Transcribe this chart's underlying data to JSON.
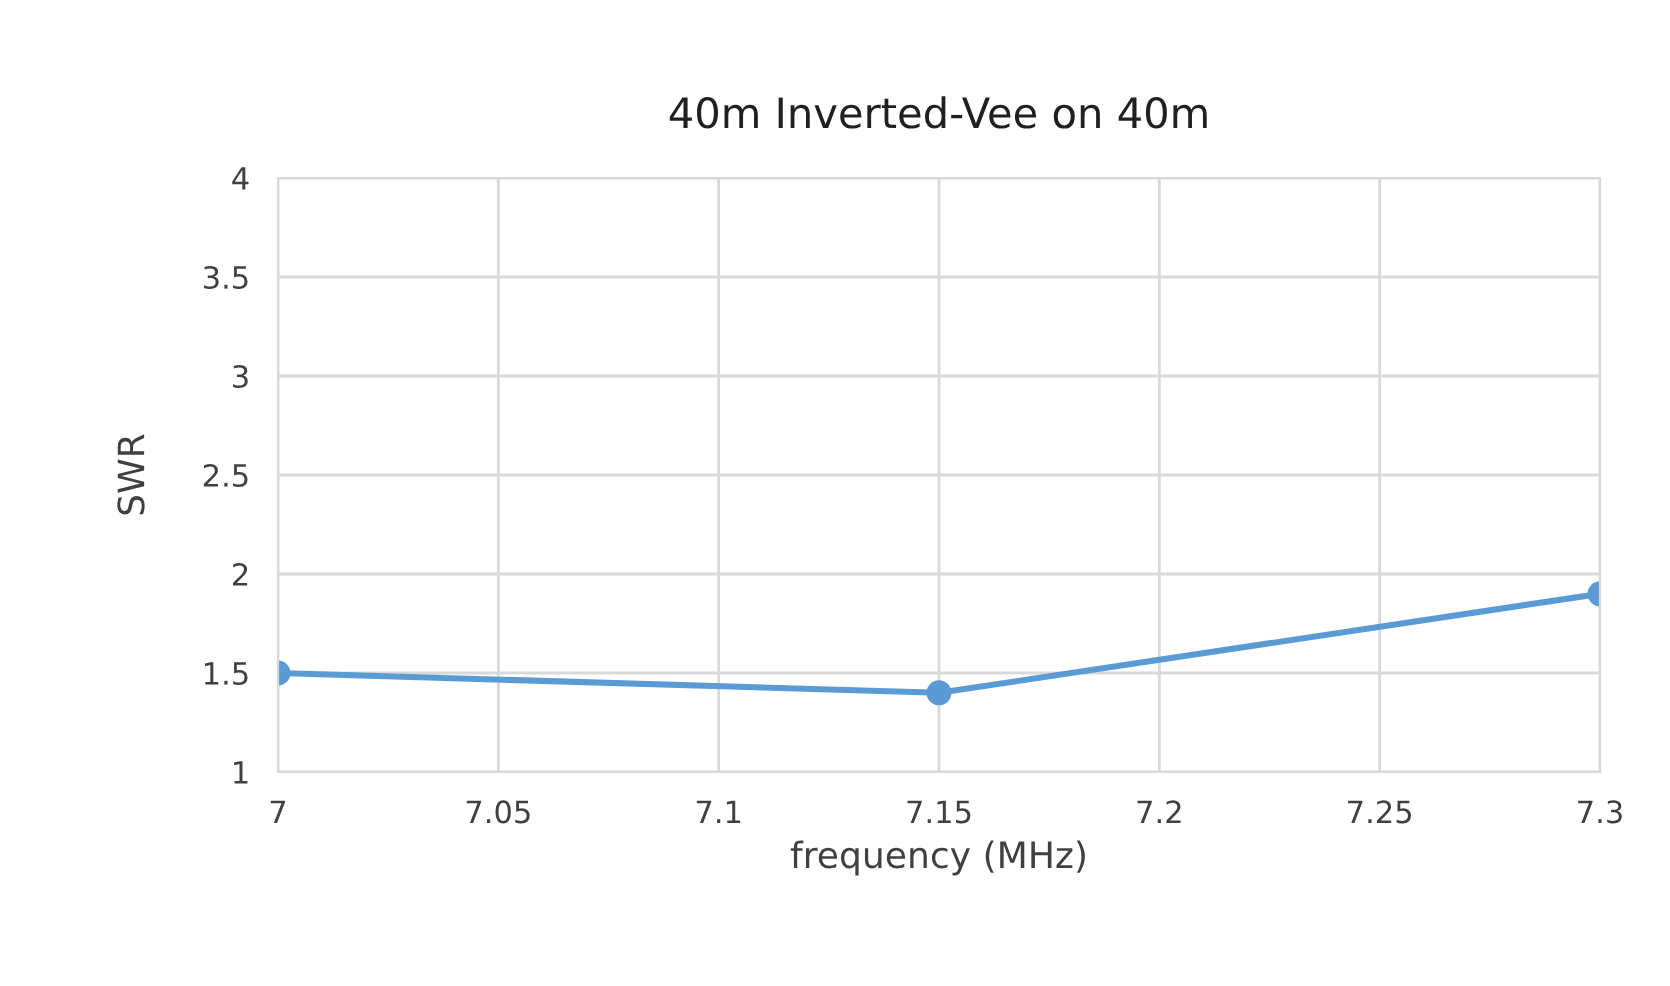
{
  "chart_data": {
    "type": "line",
    "title": "40m Inverted-Vee on 40m",
    "xlabel": "frequency (MHz)",
    "ylabel": "SWR",
    "series": [
      {
        "color": "#5b9bd5",
        "x": [
          7,
          7.15,
          7.3
        ],
        "values": [
          1.5,
          1.4,
          1.9
        ]
      }
    ],
    "xlim": [
      7,
      7.3
    ],
    "xticks": [
      7,
      7.05,
      7.1,
      7.15,
      7.2,
      7.25,
      7.3
    ],
    "ylim": [
      1,
      4
    ],
    "yticks": [
      1,
      1.5,
      2,
      2.5,
      3,
      3.5,
      4
    ],
    "grid": true,
    "marker": "circle",
    "line_style": "solid"
  }
}
